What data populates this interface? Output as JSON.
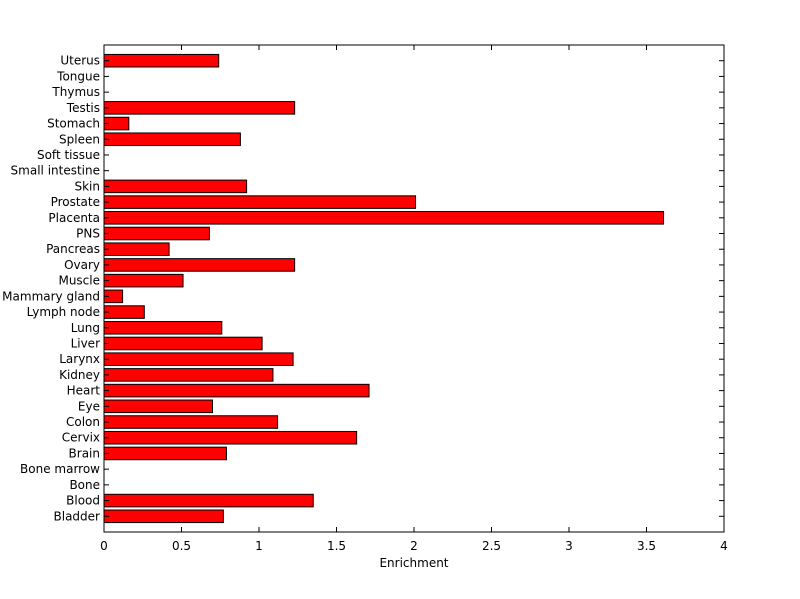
{
  "chart_data": {
    "type": "bar",
    "orientation": "horizontal",
    "title": "",
    "xlabel": "Enrichment",
    "ylabel": "",
    "xlim": [
      0,
      4
    ],
    "xticks": [
      "0",
      "0.5",
      "1",
      "1.5",
      "2",
      "2.5",
      "3",
      "3.5",
      "4"
    ],
    "grid": false,
    "bar_color": "#ff0000",
    "bar_edge_color": "#000000",
    "categories": [
      "Bladder",
      "Blood",
      "Bone",
      "Bone marrow",
      "Brain",
      "Cervix",
      "Colon",
      "Eye",
      "Heart",
      "Kidney",
      "Larynx",
      "Liver",
      "Lung",
      "Lymph node",
      "Mammary gland",
      "Muscle",
      "Ovary",
      "Pancreas",
      "PNS",
      "Placenta",
      "Prostate",
      "Skin",
      "Small intestine",
      "Soft tissue",
      "Spleen",
      "Stomach",
      "Testis",
      "Thymus",
      "Tongue",
      "Uterus"
    ],
    "values": [
      0.77,
      1.35,
      0,
      0,
      0.79,
      1.63,
      1.12,
      0.7,
      1.71,
      1.09,
      1.22,
      1.02,
      0.76,
      0.26,
      0.12,
      0.51,
      1.23,
      0.42,
      0.68,
      3.61,
      2.01,
      0.92,
      0,
      0,
      0.88,
      0.16,
      1.23,
      0,
      0,
      0.74
    ]
  }
}
